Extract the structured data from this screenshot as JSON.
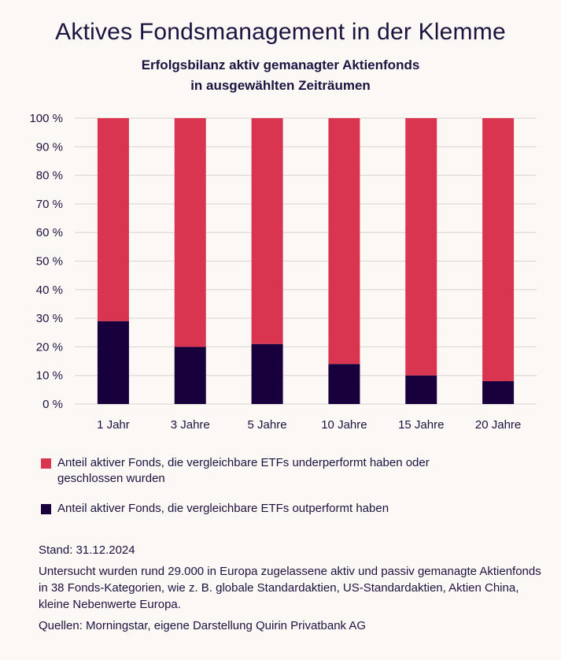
{
  "header": {
    "title": "Aktives Fondsmanagement in der Klemme",
    "subtitle_line1": "Erfolgsbilanz aktiv gemanagter Aktienfonds",
    "subtitle_line2": "in ausgewählten Zeiträumen"
  },
  "colors": {
    "underperform": "#d93450",
    "outperform": "#17003c",
    "grid": "#d9d4d2",
    "background": "#fcf8f5"
  },
  "chart_data": {
    "type": "bar",
    "stacked": true,
    "categories": [
      "1 Jahr",
      "3 Jahre",
      "5 Jahre",
      "10 Jahre",
      "15 Jahre",
      "20 Jahre"
    ],
    "series": [
      {
        "name": "Anteil aktiver Fonds, die vergleichbare ETFs outperformt haben",
        "color": "#17003c",
        "values": [
          29,
          20,
          21,
          14,
          10,
          8
        ]
      },
      {
        "name": "Anteil aktiver Fonds, die vergleichbare ETFs underperformt haben oder geschlossen wurden",
        "color": "#d93450",
        "values": [
          71,
          80,
          79,
          86,
          90,
          92
        ]
      }
    ],
    "ylim": [
      0,
      100
    ],
    "yticks": [
      0,
      10,
      20,
      30,
      40,
      50,
      60,
      70,
      80,
      90,
      100
    ],
    "ytick_labels": [
      "0 %",
      "10 %",
      "20 %",
      "30 %",
      "40 %",
      "50 %",
      "60 %",
      "70 %",
      "80 %",
      "90 %",
      "100 %"
    ],
    "grid": true,
    "legend_position": "bottom"
  },
  "legend": {
    "underperform_label": "Anteil aktiver Fonds, die vergleichbare ETFs underperformt haben oder geschlossen wurden",
    "outperform_label": "Anteil aktiver Fonds, die vergleichbare ETFs outperformt haben"
  },
  "notes": {
    "stand": "Stand: 31.12.2024",
    "method": "Untersucht wurden rund 29.000 in Europa zugelassene aktiv und passiv gemanagte Aktienfonds in 38 Fonds-Kategorien, wie z. B. globale Standardaktien, US-Standardaktien, Aktien China, kleine Nebenwerte Europa.",
    "sources": "Quellen: Morningstar, eigene Darstellung Quirin Privatbank AG"
  }
}
